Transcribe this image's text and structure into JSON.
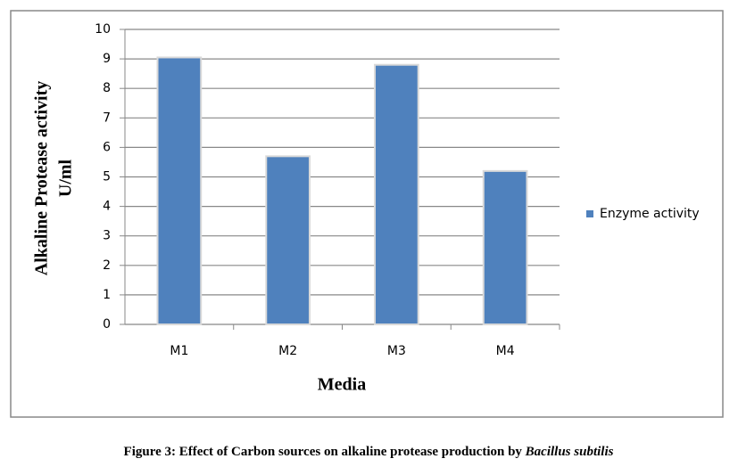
{
  "chart_data": {
    "type": "bar",
    "ylabel": [
      "Alkaline Protease activity",
      "U/ml"
    ],
    "xlabel": "Media",
    "categories": [
      "M1",
      "M2",
      "M3",
      "M4"
    ],
    "series": [
      {
        "name": "Enzyme activity",
        "color": "#4f81bd",
        "values": [
          9.05,
          5.7,
          8.8,
          5.2
        ]
      }
    ],
    "ylim": [
      0,
      10
    ],
    "yticks": [
      0,
      1,
      2,
      3,
      4,
      5,
      6,
      7,
      8,
      9,
      10
    ],
    "grid": true,
    "legend": "right",
    "caption": {
      "text": "Figure 3: Effect of Carbon sources on alkaline protease production by",
      "species": "Bacillus subtilis"
    }
  }
}
